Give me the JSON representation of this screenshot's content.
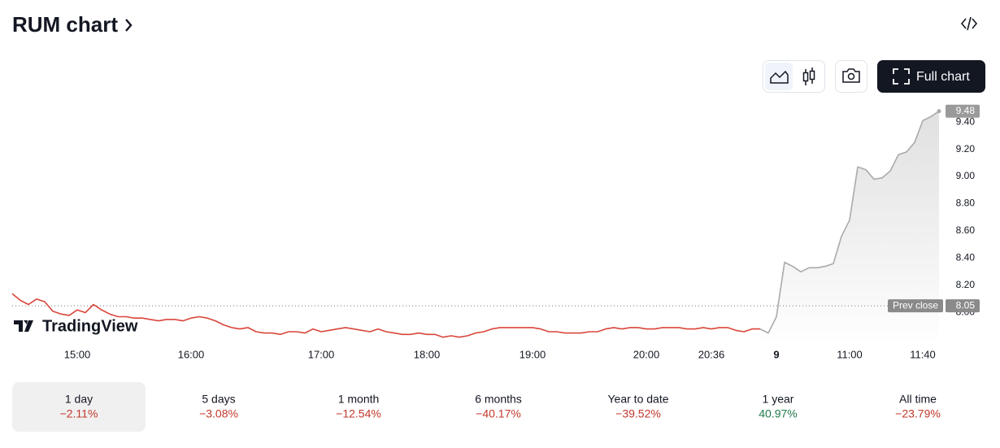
{
  "header": {
    "title": "RUM chart"
  },
  "toolbar": {
    "full_chart": "Full chart"
  },
  "watermark": "TradingView",
  "chart_data": {
    "type": "line",
    "series": [
      {
        "color": "#d9463b",
        "values": [
          8.14,
          8.09,
          8.06,
          8.1,
          8.08,
          8.01,
          7.99,
          7.98,
          8.02,
          8.0,
          8.06,
          8.02,
          7.99,
          7.97,
          7.97,
          7.96,
          7.96,
          7.95,
          7.94,
          7.95,
          7.95,
          7.94,
          7.96,
          7.97,
          7.96,
          7.94,
          7.91,
          7.89,
          7.88,
          7.89,
          7.86,
          7.85,
          7.85,
          7.84,
          7.86,
          7.86,
          7.85,
          7.88,
          7.86,
          7.87,
          7.88,
          7.89,
          7.88,
          7.87,
          7.86,
          7.88,
          7.86,
          7.85,
          7.84,
          7.84,
          7.85,
          7.84,
          7.84,
          7.82,
          7.83,
          7.82,
          7.83,
          7.85,
          7.86,
          7.88,
          7.89,
          7.89,
          7.89,
          7.89,
          7.89,
          7.88,
          7.86,
          7.86,
          7.85,
          7.85,
          7.85,
          7.86,
          7.86,
          7.88,
          7.89,
          7.88,
          7.89,
          7.89,
          7.88,
          7.88,
          7.89,
          7.89,
          7.89,
          7.88,
          7.88,
          7.89,
          7.88,
          7.89,
          7.89,
          7.87,
          7.86,
          7.88,
          7.88,
          null,
          null,
          null,
          null,
          null,
          null,
          null,
          null,
          null,
          null,
          null,
          null,
          null,
          null,
          null,
          null,
          null,
          null,
          null,
          null,
          null,
          null
        ]
      },
      {
        "color": "#aaaaaa",
        "values": [
          null,
          null,
          null,
          null,
          null,
          null,
          null,
          null,
          null,
          null,
          null,
          null,
          null,
          null,
          null,
          null,
          null,
          null,
          null,
          null,
          null,
          null,
          null,
          null,
          null,
          null,
          null,
          null,
          null,
          null,
          null,
          null,
          null,
          null,
          null,
          null,
          null,
          null,
          null,
          null,
          null,
          null,
          null,
          null,
          null,
          null,
          null,
          null,
          null,
          null,
          null,
          null,
          null,
          null,
          null,
          null,
          null,
          null,
          null,
          null,
          null,
          null,
          null,
          null,
          null,
          null,
          null,
          null,
          null,
          null,
          null,
          null,
          null,
          null,
          null,
          null,
          null,
          null,
          null,
          null,
          null,
          null,
          null,
          null,
          null,
          null,
          null,
          null,
          null,
          null,
          null,
          null,
          7.88,
          7.85,
          7.97,
          8.37,
          8.34,
          8.3,
          8.33,
          8.33,
          8.34,
          8.36,
          8.56,
          8.68,
          9.07,
          9.05,
          8.98,
          8.99,
          9.04,
          9.16,
          9.18,
          9.25,
          9.41,
          9.44,
          9.48
        ]
      }
    ],
    "xticks": [
      {
        "value": 8,
        "label": "15:00"
      },
      {
        "value": 22,
        "label": "16:00"
      },
      {
        "value": 38,
        "label": "17:00"
      },
      {
        "value": 51,
        "label": "18:00"
      },
      {
        "value": 64,
        "label": "19:00"
      },
      {
        "value": 78,
        "label": "20:00"
      },
      {
        "value": 86,
        "label": "20:36"
      },
      {
        "value": 94,
        "label": "9"
      },
      {
        "value": 103,
        "label": "11:00"
      },
      {
        "value": 112,
        "label": "11:40"
      }
    ],
    "ylim": [
      7.8,
      9.52
    ],
    "yticks": [
      {
        "value": 8,
        "label": "8.00"
      },
      {
        "value": 8.2,
        "label": "8.20"
      },
      {
        "value": 8.4,
        "label": "8.40"
      },
      {
        "value": 8.6,
        "label": "8.60"
      },
      {
        "value": 8.8,
        "label": "8.80"
      },
      {
        "value": 9,
        "label": "9.00"
      },
      {
        "value": 9.2,
        "label": "9.20"
      },
      {
        "value": 9.4,
        "label": "9.40"
      }
    ],
    "prev_close": {
      "label": "Prev close",
      "value": 8.05
    }
  },
  "periods": {
    "selected": 0,
    "items": [
      {
        "label": "1 day",
        "change": "−2.11%",
        "color": "#c0392b"
      },
      {
        "label": "5 days",
        "change": "−3.08%",
        "color": "#c0392b"
      },
      {
        "label": "1 month",
        "change": "−12.54%",
        "color": "#c0392b"
      },
      {
        "label": "6 months",
        "change": "−40.17%",
        "color": "#c0392b"
      },
      {
        "label": "Year to date",
        "change": "−39.52%",
        "color": "#c0392b"
      },
      {
        "label": "1 year",
        "change": "40.97%",
        "color": "#22794a"
      },
      {
        "label": "All time",
        "change": "−23.79%",
        "color": "#c0392b"
      }
    ]
  }
}
